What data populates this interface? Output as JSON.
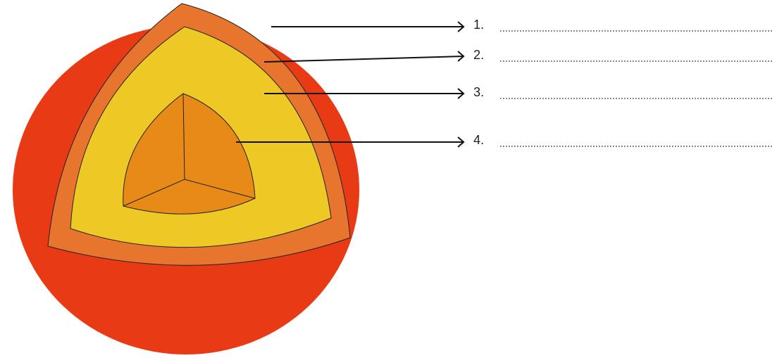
{
  "labels": [
    "1.",
    "2.",
    "3.",
    "4."
  ]
}
